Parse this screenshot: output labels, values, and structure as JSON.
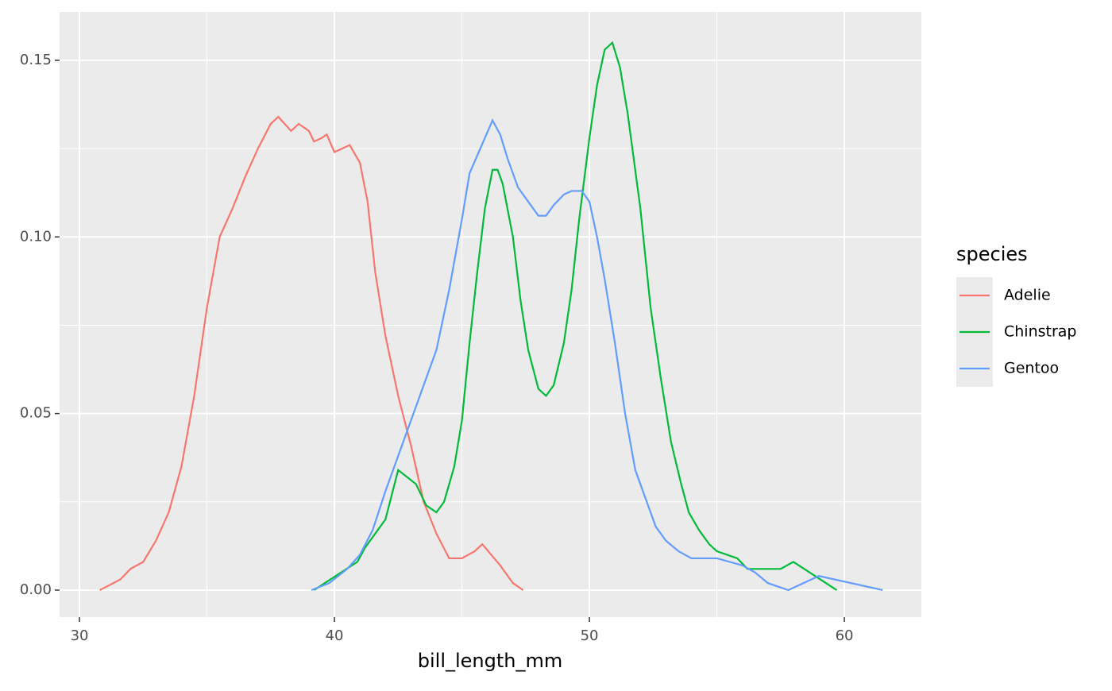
{
  "chart_data": {
    "type": "line",
    "x_label": "bill_length_mm",
    "legend_title": "species",
    "legend_position": "right",
    "grid": true,
    "xlim": [
      29.22,
      63.02
    ],
    "ylim": [
      -0.00765,
      0.1637
    ],
    "xticks": [
      30,
      40,
      50,
      60
    ],
    "xminor": [
      35,
      45,
      55
    ],
    "yticks": [
      {
        "value": 0,
        "label": "0.00"
      },
      {
        "value": 0.05,
        "label": "0.05"
      },
      {
        "value": 0.1,
        "label": "0.10"
      },
      {
        "value": 0.15,
        "label": "0.15"
      }
    ],
    "yminor": [
      0.025,
      0.075,
      0.125
    ],
    "series": [
      {
        "name": "Adelie",
        "color": "#F8766D",
        "x": [
          30.8,
          31.6,
          32.0,
          32.5,
          33.0,
          33.5,
          34.0,
          34.5,
          35.0,
          35.5,
          36.0,
          36.5,
          37.0,
          37.5,
          37.8,
          38.3,
          38.6,
          39.0,
          39.2,
          39.5,
          39.7,
          40.0,
          40.3,
          40.6,
          41.0,
          41.3,
          41.6,
          42.0,
          42.5,
          43.0,
          43.5,
          44.0,
          44.5,
          45.0,
          45.5,
          45.8,
          46.5,
          47.0,
          47.4
        ],
        "values": [
          0,
          0.003,
          0.006,
          0.008,
          0.014,
          0.022,
          0.035,
          0.055,
          0.08,
          0.1,
          0.108,
          0.117,
          0.125,
          0.132,
          0.134,
          0.13,
          0.132,
          0.13,
          0.127,
          0.128,
          0.129,
          0.124,
          0.125,
          0.126,
          0.121,
          0.11,
          0.09,
          0.072,
          0.055,
          0.041,
          0.025,
          0.016,
          0.009,
          0.009,
          0.011,
          0.013,
          0.007,
          0.002,
          0
        ]
      },
      {
        "name": "Chinstrap",
        "color": "#00BA38",
        "x": [
          39.2,
          40.9,
          41.2,
          42.0,
          42.5,
          43.2,
          43.6,
          44.0,
          44.3,
          44.7,
          45.0,
          45.3,
          45.6,
          45.9,
          46.2,
          46.4,
          46.6,
          47.0,
          47.3,
          47.6,
          48.0,
          48.3,
          48.6,
          49.0,
          49.3,
          49.6,
          50.0,
          50.3,
          50.6,
          50.9,
          51.2,
          51.5,
          52.0,
          52.4,
          52.8,
          53.2,
          53.6,
          53.9,
          54.3,
          54.7,
          55.0,
          55.8,
          56.2,
          57.5,
          58.0,
          59.7
        ],
        "values": [
          0,
          0.008,
          0.012,
          0.02,
          0.034,
          0.03,
          0.024,
          0.022,
          0.025,
          0.035,
          0.048,
          0.07,
          0.09,
          0.108,
          0.119,
          0.119,
          0.115,
          0.1,
          0.082,
          0.068,
          0.057,
          0.055,
          0.058,
          0.07,
          0.085,
          0.105,
          0.128,
          0.143,
          0.153,
          0.155,
          0.148,
          0.135,
          0.108,
          0.08,
          0.06,
          0.042,
          0.03,
          0.022,
          0.017,
          0.013,
          0.011,
          0.009,
          0.006,
          0.006,
          0.008,
          0
        ]
      },
      {
        "name": "Gentoo",
        "color": "#619CFF",
        "x": [
          39.1,
          39.8,
          40.5,
          41.0,
          41.5,
          42.0,
          42.5,
          43.0,
          43.5,
          44.0,
          44.5,
          45.0,
          45.3,
          45.6,
          45.9,
          46.2,
          46.5,
          46.8,
          47.2,
          47.6,
          48.0,
          48.3,
          48.6,
          49.0,
          49.3,
          49.7,
          50.0,
          50.3,
          50.6,
          51.0,
          51.4,
          51.8,
          52.2,
          52.6,
          53.0,
          53.5,
          54.0,
          55.0,
          56.0,
          56.5,
          57.0,
          57.8,
          59.0,
          61.5
        ],
        "values": [
          0,
          0.002,
          0.006,
          0.01,
          0.017,
          0.028,
          0.038,
          0.048,
          0.058,
          0.068,
          0.085,
          0.105,
          0.118,
          0.123,
          0.128,
          0.133,
          0.129,
          0.122,
          0.114,
          0.11,
          0.106,
          0.106,
          0.109,
          0.112,
          0.113,
          0.113,
          0.11,
          0.1,
          0.088,
          0.07,
          0.05,
          0.034,
          0.026,
          0.018,
          0.014,
          0.011,
          0.009,
          0.009,
          0.007,
          0.005,
          0.002,
          0,
          0.004,
          0
        ]
      }
    ]
  }
}
